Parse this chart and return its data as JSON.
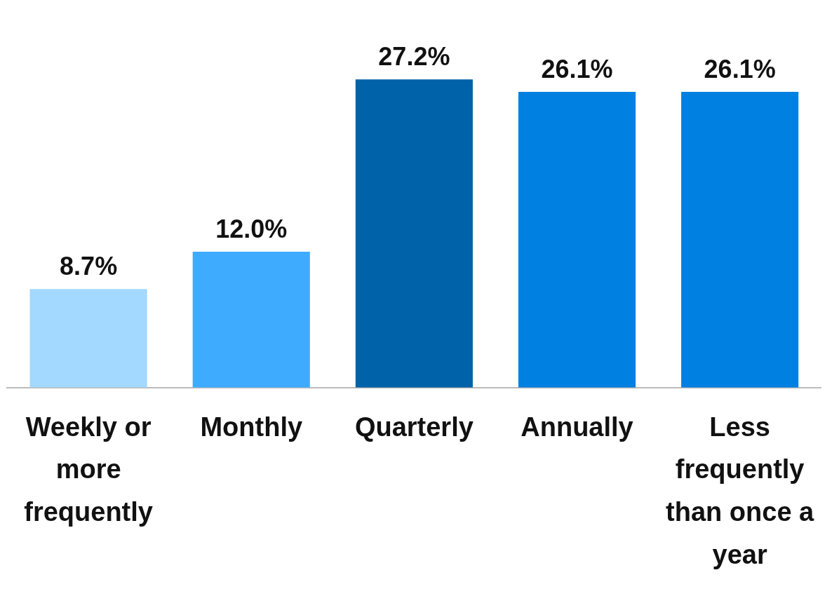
{
  "chart_data": {
    "type": "bar",
    "categories": [
      "Weekly or more frequently",
      "Monthly",
      "Quarterly",
      "Annually",
      "Less frequently than once a year"
    ],
    "values": [
      8.7,
      12.0,
      27.2,
      26.1,
      26.1
    ],
    "colors": [
      "#a3d8ff",
      "#3eabff",
      "#0062a8",
      "#0080e0",
      "#0080e0"
    ],
    "value_labels": [
      "8.7%",
      "12.0%",
      "27.2%",
      "26.1%",
      "26.1%"
    ],
    "grid": false,
    "legend": false
  }
}
